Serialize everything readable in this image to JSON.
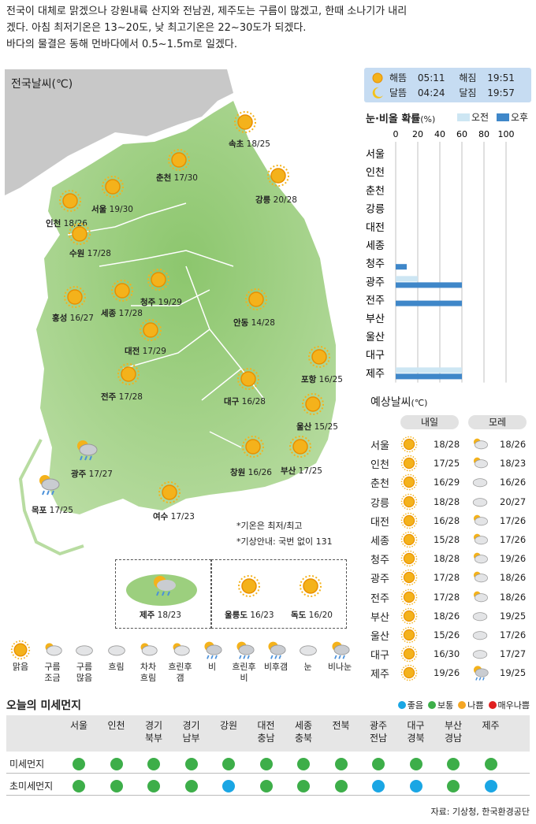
{
  "headline": [
    "전국이 대체로 맑겠으나 강원내륙 산지와 전남권, 제주도는 구름이 많겠고, 한때 소나기가 내리",
    "겠다. 아침 최저기온은 13~20도, 낮 최고기온은 22~30도가 되겠다.",
    "바다의 물결은 동해 먼바다에서 0.5~1.5m로 일겠다."
  ],
  "map": {
    "title": "전국날씨(℃)",
    "cities": [
      {
        "name": "속초",
        "temp": "18/25",
        "icon": "sun-icon"
      },
      {
        "name": "춘천",
        "temp": "17/30",
        "icon": "sun-icon"
      },
      {
        "name": "강릉",
        "temp": "20/28",
        "icon": "sun-icon"
      },
      {
        "name": "서울",
        "temp": "19/30",
        "icon": "sun-icon"
      },
      {
        "name": "인천",
        "temp": "18/26",
        "icon": "sun-icon"
      },
      {
        "name": "수원",
        "temp": "17/28",
        "icon": "sun-icon"
      },
      {
        "name": "청주",
        "temp": "19/29",
        "icon": "sun-icon"
      },
      {
        "name": "세종",
        "temp": "17/28",
        "icon": "sun-icon"
      },
      {
        "name": "홍성",
        "temp": "16/27",
        "icon": "sun-icon"
      },
      {
        "name": "안동",
        "temp": "14/28",
        "icon": "sun-icon"
      },
      {
        "name": "대전",
        "temp": "17/29",
        "icon": "sun-icon"
      },
      {
        "name": "포항",
        "temp": "16/25",
        "icon": "sun-icon"
      },
      {
        "name": "전주",
        "temp": "17/28",
        "icon": "sun-icon"
      },
      {
        "name": "대구",
        "temp": "16/28",
        "icon": "sun-icon"
      },
      {
        "name": "울산",
        "temp": "15/25",
        "icon": "sun-icon"
      },
      {
        "name": "광주",
        "temp": "17/27",
        "icon": "rain-cloud-icon"
      },
      {
        "name": "창원",
        "temp": "16/26",
        "icon": "sun-icon"
      },
      {
        "name": "부산",
        "temp": "17/25",
        "icon": "sun-icon"
      },
      {
        "name": "목포",
        "temp": "17/25",
        "icon": "rain-cloud-icon"
      },
      {
        "name": "여수",
        "temp": "17/23",
        "icon": "sun-icon"
      }
    ],
    "notes": [
      "*기온은 최저/최고",
      "*기상안내: 국번 없이 131"
    ],
    "insets": [
      {
        "name": "제주",
        "temp": "18/23"
      },
      {
        "name": "울릉도",
        "temp": "16/23"
      },
      {
        "name": "독도",
        "temp": "16/20"
      }
    ]
  },
  "sun_moon": {
    "sunrise_label": "해뜸",
    "sunrise": "05:11",
    "sunset_label": "해짐",
    "sunset": "19:51",
    "moonrise_label": "달뜸",
    "moonrise": "04:24",
    "moonset_label": "달짐",
    "moonset": "19:57"
  },
  "rain_prob": {
    "title": "눈·비올 확률",
    "unit": "(%)",
    "legend_am": "오전",
    "legend_pm": "오후",
    "ticks": [
      "0",
      "20",
      "40",
      "60",
      "80",
      "100"
    ],
    "cities": [
      "서울",
      "인천",
      "춘천",
      "강릉",
      "대전",
      "세종",
      "청주",
      "광주",
      "전주",
      "부산",
      "울산",
      "대구",
      "제주"
    ],
    "am": [
      0,
      0,
      0,
      0,
      0,
      0,
      0,
      20,
      0,
      0,
      0,
      0,
      60
    ],
    "pm": [
      0,
      0,
      0,
      0,
      0,
      0,
      10,
      60,
      60,
      0,
      0,
      0,
      60
    ],
    "colors": {
      "am": "#cde6f3",
      "pm": "#3f87c9"
    }
  },
  "forecast": {
    "title": "예상날씨",
    "unit": "(℃)",
    "day1": "내일",
    "day2": "모레",
    "rows": [
      {
        "city": "서울",
        "d1": "18/28",
        "d2": "18/26",
        "i2": "partly-cloudy-icon"
      },
      {
        "city": "인천",
        "d1": "17/25",
        "d2": "18/23",
        "i2": "partly-cloudy-icon"
      },
      {
        "city": "춘천",
        "d1": "16/29",
        "d2": "16/26",
        "i2": "cloudy-icon"
      },
      {
        "city": "강릉",
        "d1": "18/28",
        "d2": "20/27",
        "i2": "cloudy-icon"
      },
      {
        "city": "대전",
        "d1": "16/28",
        "d2": "17/26",
        "i2": "partly-cloudy-icon"
      },
      {
        "city": "세종",
        "d1": "15/28",
        "d2": "17/26",
        "i2": "partly-cloudy-icon"
      },
      {
        "city": "청주",
        "d1": "18/28",
        "d2": "19/26",
        "i2": "partly-cloudy-icon"
      },
      {
        "city": "광주",
        "d1": "17/28",
        "d2": "18/26",
        "i2": "partly-cloudy-icon"
      },
      {
        "city": "전주",
        "d1": "17/28",
        "d2": "18/26",
        "i2": "partly-cloudy-icon"
      },
      {
        "city": "부산",
        "d1": "18/26",
        "d2": "19/25",
        "i2": "cloudy-icon"
      },
      {
        "city": "울산",
        "d1": "15/26",
        "d2": "17/26",
        "i2": "cloudy-icon"
      },
      {
        "city": "대구",
        "d1": "16/30",
        "d2": "17/27",
        "i2": "cloudy-icon"
      },
      {
        "city": "제주",
        "d1": "19/26",
        "d2": "19/25",
        "i2": "rain-cloud-icon"
      }
    ]
  },
  "icon_legend": [
    "맑음",
    "구름조금",
    "구름많음",
    "흐림",
    "차차흐림",
    "흐린후갬",
    "비",
    "흐린후비",
    "비후갬",
    "눈",
    "비나눈"
  ],
  "dust": {
    "title": "오늘의 미세먼지",
    "legend": [
      {
        "label": "좋음",
        "color": "#1aa6e4"
      },
      {
        "label": "보통",
        "color": "#3dae49"
      },
      {
        "label": "나쁨",
        "color": "#f5a623"
      },
      {
        "label": "매우나쁨",
        "color": "#e02020"
      }
    ],
    "regions": [
      [
        "서울"
      ],
      [
        "인천"
      ],
      [
        "경기",
        "북부"
      ],
      [
        "경기",
        "남부"
      ],
      [
        "강원"
      ],
      [
        "대전",
        "충남"
      ],
      [
        "세종",
        "충북"
      ],
      [
        "전북"
      ],
      [
        "광주",
        "전남"
      ],
      [
        "대구",
        "경북"
      ],
      [
        "부산",
        "경남"
      ],
      [
        "제주"
      ]
    ],
    "rows": [
      {
        "label": "미세먼지",
        "levels": [
          "보통",
          "보통",
          "보통",
          "보통",
          "보통",
          "보통",
          "보통",
          "보통",
          "보통",
          "보통",
          "보통",
          "보통"
        ]
      },
      {
        "label": "초미세먼지",
        "levels": [
          "보통",
          "보통",
          "보통",
          "보통",
          "좋음",
          "보통",
          "보통",
          "보통",
          "좋음",
          "좋음",
          "보통",
          "좋음"
        ]
      }
    ]
  },
  "source": "자료: 기상청, 한국환경공단"
}
